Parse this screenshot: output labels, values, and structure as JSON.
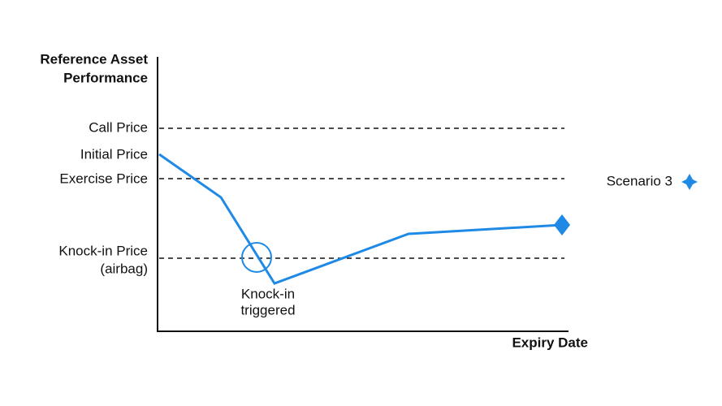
{
  "y_axis": {
    "title": [
      "Reference Asset",
      "Performance"
    ]
  },
  "x_axis": {
    "title": "Expiry Date"
  },
  "levels": [
    {
      "label": [
        "Call Price"
      ]
    },
    {
      "label": [
        "Initial Price"
      ]
    },
    {
      "label": [
        "Exercise Price"
      ]
    },
    {
      "label": [
        "Knock-in Price",
        "(airbag)"
      ]
    }
  ],
  "annotation": [
    "Knock-in",
    "triggered"
  ],
  "legend": {
    "label": "Scenario 3"
  }
}
